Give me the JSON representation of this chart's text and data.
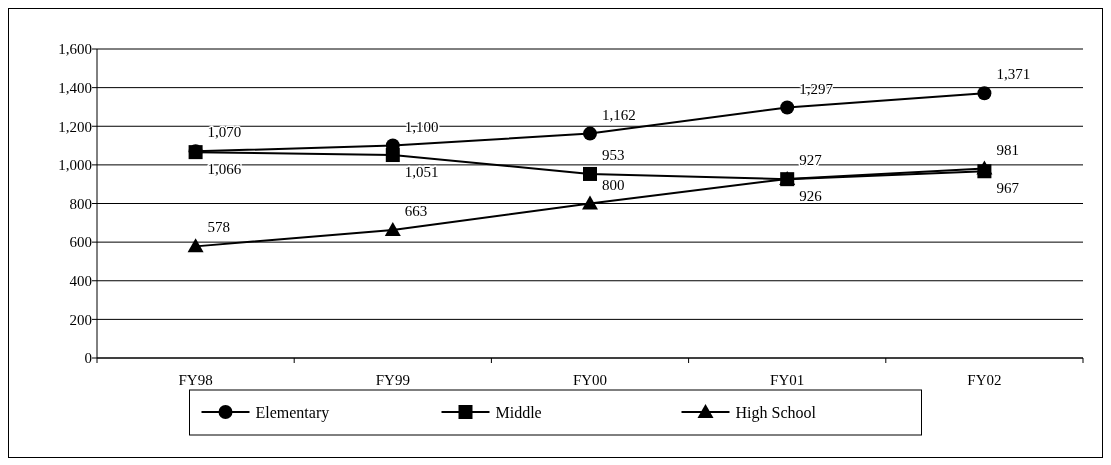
{
  "chart_data": {
    "type": "line",
    "categories": [
      "FY98",
      "FY99",
      "FY00",
      "FY01",
      "FY02"
    ],
    "series": [
      {
        "name": "Elementary",
        "color": "#000000",
        "marker": "circle",
        "values": [
          1070,
          1100,
          1162,
          1297,
          1371
        ],
        "value_labels": [
          "1,070",
          "1,100",
          "1,162",
          "1,297",
          "1,371"
        ]
      },
      {
        "name": "Middle",
        "color": "#000000",
        "marker": "square",
        "values": [
          1066,
          1051,
          953,
          926,
          967
        ],
        "value_labels": [
          "1,066",
          "1,051",
          "953",
          "926",
          "967"
        ]
      },
      {
        "name": "High School",
        "color": "#000000",
        "marker": "triangle",
        "values": [
          578,
          663,
          800,
          927,
          981
        ],
        "value_labels": [
          "578",
          "663",
          "800",
          "927",
          "981"
        ]
      }
    ],
    "ylim": [
      0,
      1600
    ],
    "yticks": [
      {
        "value": 0,
        "label": "0"
      },
      {
        "value": 200,
        "label": "200"
      },
      {
        "value": 400,
        "label": "400"
      },
      {
        "value": 600,
        "label": "600"
      },
      {
        "value": 800,
        "label": "800"
      },
      {
        "value": 1000,
        "label": "1,000"
      },
      {
        "value": 1200,
        "label": "1,200"
      },
      {
        "value": 1400,
        "label": "1,400"
      },
      {
        "value": 1600,
        "label": "1,600"
      }
    ],
    "grid": "y",
    "legend": "bottom",
    "line_style": "solid"
  }
}
